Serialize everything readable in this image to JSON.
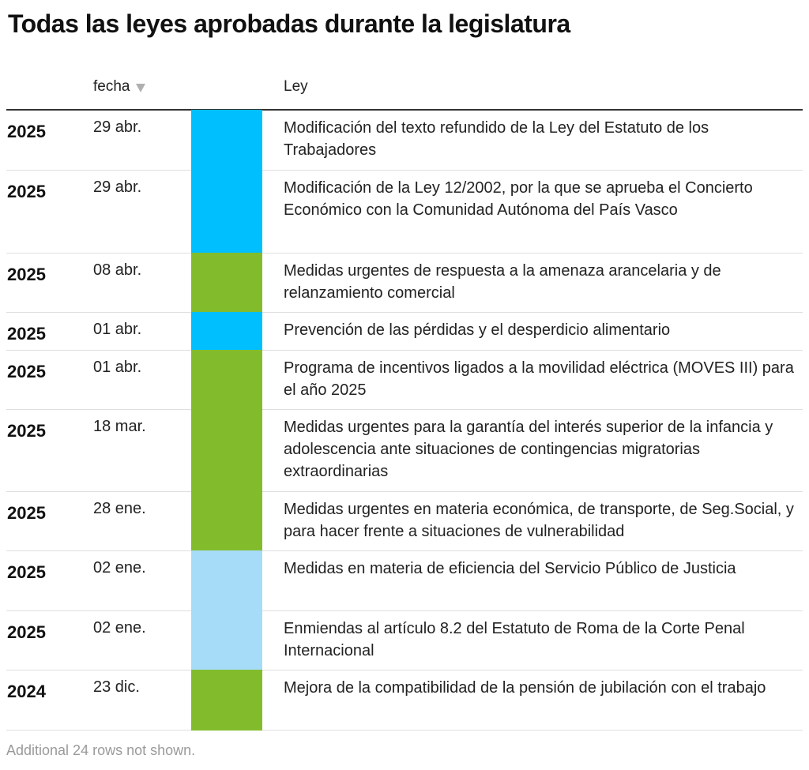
{
  "title": "Todas las leyes aprobadas durante la legislatura",
  "columns": {
    "fecha": "fecha",
    "ley": "Ley"
  },
  "colors": {
    "cyan": "#00bfff",
    "green": "#82bc2d",
    "light_blue": "#a6dcf7"
  },
  "rows": [
    {
      "year": "2025",
      "date": "29 abr.",
      "color": "#00bfff",
      "law": "Modificación del texto refundido de la Ley del Estatuto de los Trabajadores"
    },
    {
      "year": "2025",
      "date": "29 abr.",
      "color": "#00bfff",
      "law": "Modificación de la Ley 12/2002, por la que se aprueba el Concierto Económico con la Comunidad Autónoma del País Vasco"
    },
    {
      "year": "2025",
      "date": "08 abr.",
      "color": "#82bc2d",
      "law": "Medidas urgentes de respuesta a la amenaza arancelaria y de relanzamiento comercial"
    },
    {
      "year": "2025",
      "date": "01 abr.",
      "color": "#00bfff",
      "law": "Prevención de las pérdidas y el desperdicio alimentario"
    },
    {
      "year": "2025",
      "date": "01 abr.",
      "color": "#82bc2d",
      "law": "Programa de incentivos ligados a la movilidad eléctrica (MOVES III) para el año 2025"
    },
    {
      "year": "2025",
      "date": "18 mar.",
      "color": "#82bc2d",
      "law": "Medidas urgentes para la garantía del interés superior de la infancia y adolescencia ante situaciones de contingencias migratorias extraordinarias"
    },
    {
      "year": "2025",
      "date": "28 ene.",
      "color": "#82bc2d",
      "law": "Medidas urgentes en materia económica, de transporte, de Seg.Social, y para hacer frente a situaciones de vulnerabilidad"
    },
    {
      "year": "2025",
      "date": "02 ene.",
      "color": "#a6dcf7",
      "law": "Medidas en materia de eficiencia del Servicio Público de Justicia"
    },
    {
      "year": "2025",
      "date": "02 ene.",
      "color": "#a6dcf7",
      "law": "Enmiendas al artículo 8.2 del Estatuto de Roma de la Corte Penal Internacional"
    },
    {
      "year": "2024",
      "date": "23 dic.",
      "color": "#82bc2d",
      "law": "Mejora de la compatibilidad de la pensión de jubilación con el trabajo"
    }
  ],
  "footer_note": "Additional 24 rows not shown."
}
